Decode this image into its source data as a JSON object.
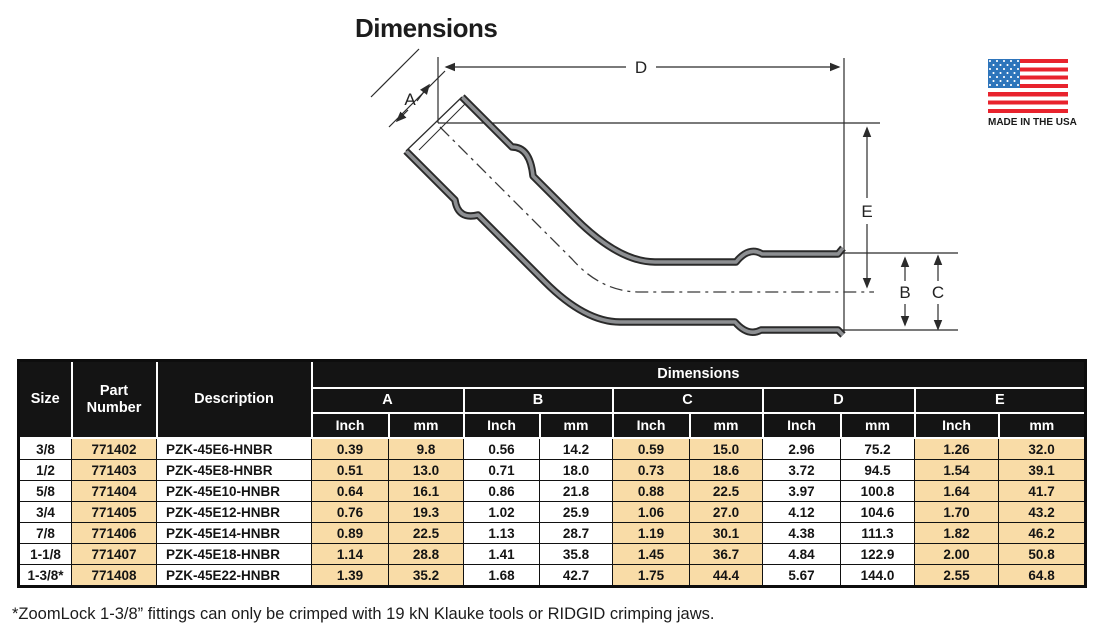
{
  "title": "Dimensions",
  "made_in_usa": {
    "label": "MADE IN THE USA"
  },
  "diagram": {
    "labels": {
      "a": "A",
      "b": "B",
      "c": "C",
      "d": "D",
      "e": "E"
    }
  },
  "table": {
    "header": {
      "size": "Size",
      "part_number": "Part Number",
      "description": "Description",
      "dimensions": "Dimensions",
      "dims": [
        "A",
        "B",
        "C",
        "D",
        "E"
      ],
      "inch": "Inch",
      "mm": "mm"
    },
    "rows": [
      {
        "size": "3/8",
        "part": "771402",
        "desc": "PZK-45E6-HNBR",
        "A": [
          "0.39",
          "9.8"
        ],
        "B": [
          "0.56",
          "14.2"
        ],
        "C": [
          "0.59",
          "15.0"
        ],
        "D": [
          "2.96",
          "75.2"
        ],
        "E": [
          "1.26",
          "32.0"
        ]
      },
      {
        "size": "1/2",
        "part": "771403",
        "desc": "PZK-45E8-HNBR",
        "A": [
          "0.51",
          "13.0"
        ],
        "B": [
          "0.71",
          "18.0"
        ],
        "C": [
          "0.73",
          "18.6"
        ],
        "D": [
          "3.72",
          "94.5"
        ],
        "E": [
          "1.54",
          "39.1"
        ]
      },
      {
        "size": "5/8",
        "part": "771404",
        "desc": "PZK-45E10-HNBR",
        "A": [
          "0.64",
          "16.1"
        ],
        "B": [
          "0.86",
          "21.8"
        ],
        "C": [
          "0.88",
          "22.5"
        ],
        "D": [
          "3.97",
          "100.8"
        ],
        "E": [
          "1.64",
          "41.7"
        ]
      },
      {
        "size": "3/4",
        "part": "771405",
        "desc": "PZK-45E12-HNBR",
        "A": [
          "0.76",
          "19.3"
        ],
        "B": [
          "1.02",
          "25.9"
        ],
        "C": [
          "1.06",
          "27.0"
        ],
        "D": [
          "4.12",
          "104.6"
        ],
        "E": [
          "1.70",
          "43.2"
        ]
      },
      {
        "size": "7/8",
        "part": "771406",
        "desc": "PZK-45E14-HNBR",
        "A": [
          "0.89",
          "22.5"
        ],
        "B": [
          "1.13",
          "28.7"
        ],
        "C": [
          "1.19",
          "30.1"
        ],
        "D": [
          "4.38",
          "111.3"
        ],
        "E": [
          "1.82",
          "46.2"
        ]
      },
      {
        "size": "1-1/8",
        "part": "771407",
        "desc": "PZK-45E18-HNBR",
        "A": [
          "1.14",
          "28.8"
        ],
        "B": [
          "1.41",
          "35.8"
        ],
        "C": [
          "1.45",
          "36.7"
        ],
        "D": [
          "4.84",
          "122.9"
        ],
        "E": [
          "2.00",
          "50.8"
        ]
      },
      {
        "size": "1-3/8*",
        "part": "771408",
        "desc": "PZK-45E22-HNBR",
        "A": [
          "1.39",
          "35.2"
        ],
        "B": [
          "1.68",
          "42.7"
        ],
        "C": [
          "1.75",
          "44.4"
        ],
        "D": [
          "5.67",
          "144.0"
        ],
        "E": [
          "2.55",
          "64.8"
        ]
      }
    ]
  },
  "footnote": "*ZoomLock 1-3/8” fittings can only be crimped with 19 kN Klauke tools or RIDGID crimping jaws.",
  "colors": {
    "highlight": "#F9DCA7",
    "header_bg": "#141414",
    "flag_red": "#E8232D",
    "flag_blue": "#2E75BB"
  }
}
